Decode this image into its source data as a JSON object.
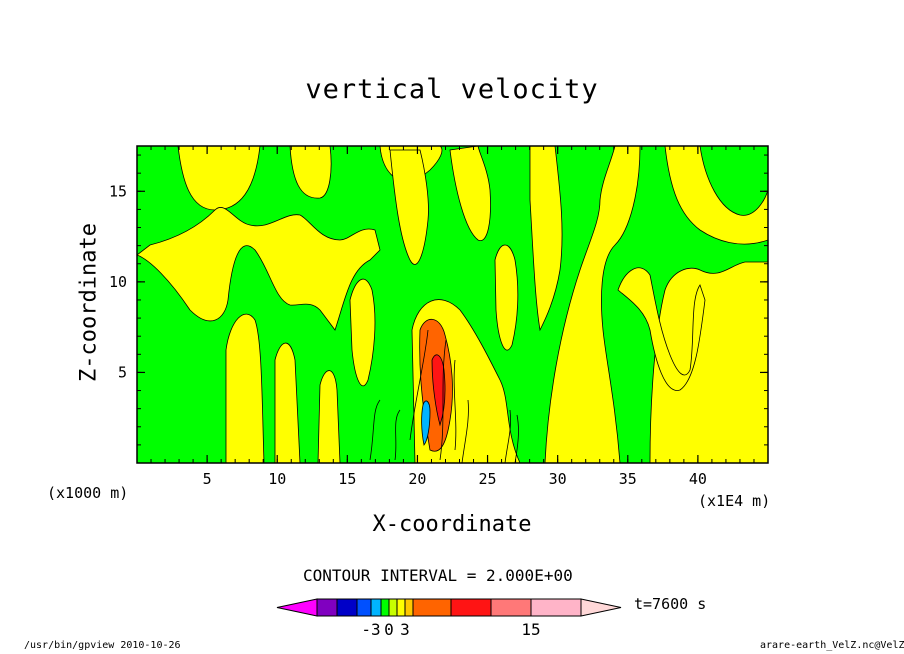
{
  "chart_data": {
    "type": "heatmap",
    "title": "vertical velocity",
    "xlabel": "X-coordinate",
    "ylabel": "Z-coordinate",
    "x_unit_left": "(x1000 m)",
    "x_unit_right": "(x1E4 m)",
    "xlim": [
      0,
      45
    ],
    "ylim": [
      0,
      17.5
    ],
    "xticks": [
      5,
      10,
      15,
      20,
      25,
      30,
      35,
      40
    ],
    "yticks": [
      5,
      10,
      15
    ],
    "contour_interval_label": "CONTOUR INTERVAL = 2.000E+00",
    "time_label": "t=7600 s",
    "colorbar": {
      "labels": [
        {
          "text": "-3",
          "value": -3
        },
        {
          "text": "0",
          "value": 0
        },
        {
          "text": "3",
          "value": 3
        },
        {
          "text": "15",
          "value": 15
        }
      ],
      "colors": [
        "#ff00ff",
        "#8000c0",
        "#0000c8",
        "#0050ff",
        "#00b4ff",
        "#00ff00",
        "#c8ff00",
        "#ffff00",
        "#ffc800",
        "#ff6400",
        "#ff1414",
        "#ff7878",
        "#ffb4c8",
        "#ffd8d8"
      ]
    },
    "background_color": "#00ff00",
    "positive_color": "#ffff00",
    "strong_colors": [
      "#ff6400",
      "#ff1414",
      "#00b4ff"
    ]
  },
  "footer": {
    "left": "/usr/bin/gpview  2010-10-26",
    "right": "arare-earth_VelZ.nc@VelZ"
  }
}
